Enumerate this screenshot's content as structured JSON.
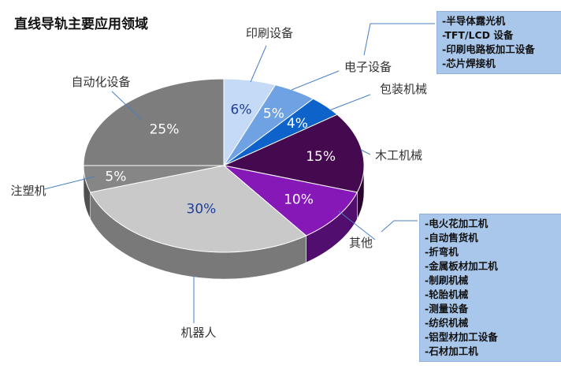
{
  "chart_data": {
    "type": "pie",
    "style": "3d",
    "title": "直线导轨主要应用领域",
    "slices": [
      {
        "label": "印刷设备",
        "value": 6,
        "value_label": "6%",
        "color": "#c5daf6"
      },
      {
        "label": "电子设备",
        "value": 5,
        "value_label": "5%",
        "color": "#6fa2e2"
      },
      {
        "label": "包装机械",
        "value": 4,
        "value_label": "4%",
        "color": "#0d63c9"
      },
      {
        "label": "木工机械",
        "value": 15,
        "value_label": "15%",
        "color": "#44094f"
      },
      {
        "label": "其他",
        "value": 10,
        "value_label": "10%",
        "color": "#8718b8"
      },
      {
        "label": "机器人",
        "value": 30,
        "value_label": "30%",
        "color": "#c9c9c9"
      },
      {
        "label": "注塑机",
        "value": 5,
        "value_label": "5%",
        "color": "#868686"
      },
      {
        "label": "自动化设备",
        "value": 25,
        "value_label": "25%",
        "color": "#7d7d7d"
      }
    ]
  },
  "callouts": {
    "electronics": [
      "-半导体露光机",
      "-TFT/LCD 设备",
      "-印刷电路板加工设备",
      "-芯片焊接机"
    ],
    "other": [
      "-电火花加工机",
      "-自动售货机",
      "-折弯机",
      "-金属板材加工机",
      "-制刷机械",
      "-轮胎机械",
      "-测量设备",
      "-纺织机械",
      "-铝型材加工设备",
      "-石材加工机"
    ]
  },
  "colors": {
    "callout_bg": "#a9c7ea",
    "leader_line": "#4a7fc4",
    "value_text_dark": "#1f3f9a",
    "value_text_light": "#ffffff"
  }
}
